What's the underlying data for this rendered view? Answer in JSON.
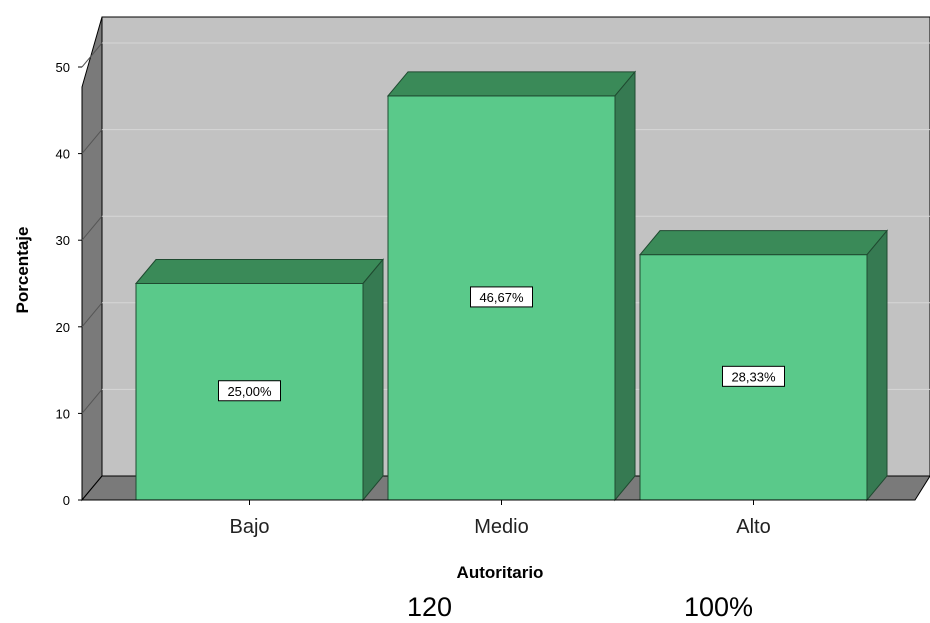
{
  "chart_data": {
    "type": "bar",
    "style": "3d",
    "categories": [
      "Bajo",
      "Medio",
      "Alto"
    ],
    "values": [
      25.0,
      46.67,
      28.33
    ],
    "data_labels": [
      "25,00%",
      "46,67%",
      "28,33%"
    ],
    "xlabel": "Autoritario",
    "ylabel": "Porcentaje",
    "ylim": [
      0,
      50
    ],
    "yticks": [
      0,
      10,
      20,
      30,
      40,
      50
    ],
    "grid": true,
    "legend": "none",
    "colors": {
      "bar_front": "#5ac98a",
      "bar_top": "#3a8a58",
      "bar_side": "#367a52",
      "back_wall": "#c2c2c2",
      "side_wall": "#7a7a7a",
      "floor": "#7a7a7a",
      "gridline": "#d6d6d6"
    }
  },
  "footer": {
    "left_value": "120",
    "right_value": "100%"
  }
}
